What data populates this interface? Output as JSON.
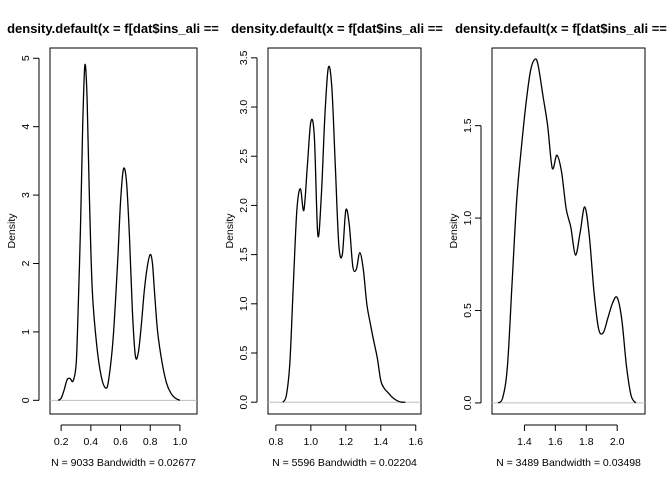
{
  "chart_data": [
    {
      "type": "line",
      "title": "density.default(x = f[dat$ins_ali ==",
      "xlabel": "N = 9033   Bandwidth = 0.02677",
      "ylabel": "Density",
      "xlim": [
        0.125,
        1.115
      ],
      "ylim": [
        -0.2,
        5.15
      ],
      "x_ticks": [
        0.2,
        0.4,
        0.6,
        0.8,
        1.0
      ],
      "x_tick_labels": [
        "0.2",
        "0.4",
        "0.6",
        "0.8",
        "1.0"
      ],
      "y_ticks": [
        0,
        1,
        2,
        3,
        4,
        5
      ],
      "y_tick_labels": [
        "0",
        "1",
        "2",
        "3",
        "4",
        "5"
      ],
      "grid": false,
      "zero_line": true,
      "series": [
        {
          "x": [
            0.18,
            0.2,
            0.22,
            0.24,
            0.26,
            0.28,
            0.3,
            0.31,
            0.33,
            0.345,
            0.36,
            0.375,
            0.39,
            0.41,
            0.44,
            0.47,
            0.5,
            0.52,
            0.55,
            0.58,
            0.6,
            0.62,
            0.64,
            0.66,
            0.68,
            0.7,
            0.72,
            0.74,
            0.76,
            0.78,
            0.8,
            0.815,
            0.83,
            0.85,
            0.88,
            0.91,
            0.94,
            0.97,
            1.0
          ],
          "y": [
            0.0,
            0.03,
            0.15,
            0.3,
            0.32,
            0.28,
            0.5,
            1.0,
            2.5,
            4.0,
            4.9,
            4.4,
            3.0,
            1.6,
            0.8,
            0.35,
            0.18,
            0.3,
            0.9,
            2.0,
            2.9,
            3.38,
            3.2,
            2.4,
            1.3,
            0.65,
            0.7,
            1.1,
            1.6,
            1.95,
            2.13,
            2.0,
            1.55,
            1.0,
            0.55,
            0.25,
            0.1,
            0.03,
            0.0
          ]
        }
      ]
    },
    {
      "type": "line",
      "title": "density.default(x = f[dat$ins_ali ==",
      "xlabel": "N = 5596   Bandwidth = 0.02204",
      "ylabel": "Density",
      "xlim": [
        0.755,
        1.63
      ],
      "ylim": [
        -0.12,
        3.6
      ],
      "x_ticks": [
        0.8,
        1.0,
        1.2,
        1.4,
        1.6
      ],
      "x_tick_labels": [
        "0.8",
        "1.0",
        "1.2",
        "1.4",
        "1.6"
      ],
      "y_ticks": [
        0,
        0.5,
        1.0,
        1.5,
        2.0,
        2.5,
        3.0,
        3.5
      ],
      "y_tick_labels": [
        "0.0",
        "0.5",
        "1.0",
        "1.5",
        "2.0",
        "2.5",
        "3.0",
        "3.5"
      ],
      "grid": false,
      "zero_line": true,
      "series": [
        {
          "x": [
            0.84,
            0.86,
            0.88,
            0.9,
            0.92,
            0.94,
            0.96,
            0.98,
            1.0,
            1.02,
            1.04,
            1.06,
            1.08,
            1.1,
            1.12,
            1.14,
            1.16,
            1.18,
            1.2,
            1.22,
            1.24,
            1.26,
            1.28,
            1.3,
            1.32,
            1.34,
            1.36,
            1.38,
            1.4,
            1.42,
            1.44,
            1.46,
            1.48,
            1.5,
            1.52,
            1.54
          ],
          "y": [
            0.0,
            0.07,
            0.4,
            1.2,
            1.95,
            2.17,
            1.95,
            2.4,
            2.85,
            2.7,
            1.7,
            2.1,
            2.9,
            3.4,
            3.2,
            2.4,
            1.6,
            1.5,
            1.95,
            1.8,
            1.38,
            1.35,
            1.52,
            1.35,
            1.0,
            0.8,
            0.62,
            0.45,
            0.22,
            0.14,
            0.1,
            0.06,
            0.03,
            0.01,
            0.0,
            0.0
          ]
        }
      ]
    },
    {
      "type": "line",
      "title": "density.default(x = f[dat$ins_ali ==",
      "xlabel": "N = 3489   Bandwidth = 0.03498",
      "ylabel": "Density",
      "xlim": [
        1.19,
        2.18
      ],
      "ylim": [
        -0.06,
        1.92
      ],
      "x_ticks": [
        1.4,
        1.6,
        1.8,
        2.0
      ],
      "x_tick_labels": [
        "1.4",
        "1.6",
        "1.8",
        "2.0"
      ],
      "y_ticks": [
        0,
        0.5,
        1.0,
        1.5
      ],
      "y_tick_labels": [
        "0.0",
        "0.5",
        "1.0",
        "1.5"
      ],
      "grid": false,
      "zero_line": true,
      "series": [
        {
          "x": [
            1.23,
            1.26,
            1.29,
            1.32,
            1.35,
            1.38,
            1.41,
            1.44,
            1.47,
            1.49,
            1.52,
            1.55,
            1.58,
            1.61,
            1.64,
            1.67,
            1.7,
            1.73,
            1.76,
            1.79,
            1.82,
            1.85,
            1.88,
            1.91,
            1.94,
            1.97,
            2.0,
            2.03,
            2.06,
            2.09,
            2.12
          ],
          "y": [
            0.0,
            0.03,
            0.2,
            0.65,
            1.1,
            1.38,
            1.62,
            1.8,
            1.86,
            1.82,
            1.66,
            1.5,
            1.27,
            1.34,
            1.25,
            1.05,
            0.95,
            0.8,
            0.92,
            1.06,
            0.9,
            0.6,
            0.4,
            0.38,
            0.46,
            0.54,
            0.57,
            0.45,
            0.2,
            0.04,
            0.0
          ]
        }
      ]
    }
  ]
}
